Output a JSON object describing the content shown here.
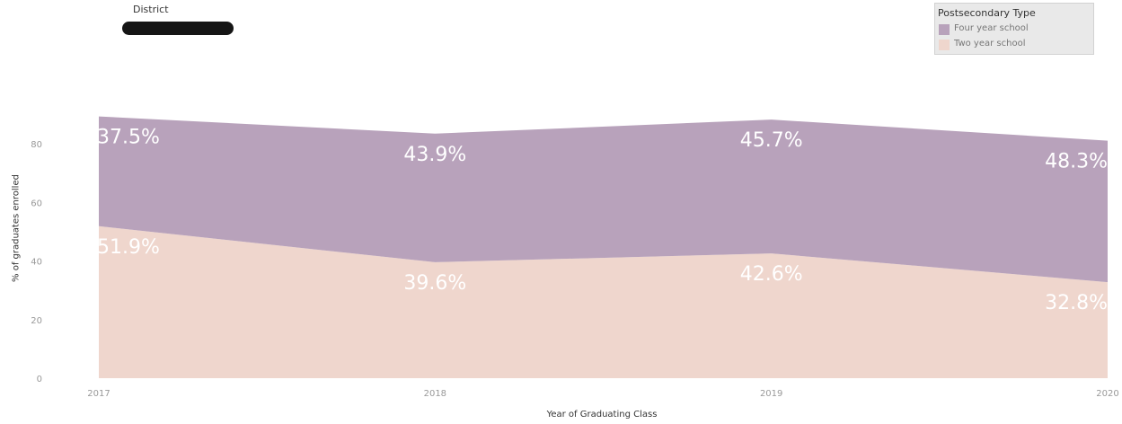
{
  "filter": {
    "label": "District"
  },
  "legend": {
    "title": "Postsecondary Type",
    "items": [
      {
        "label": "Four year school",
        "color": "#b8a2bb"
      },
      {
        "label": "Two year school",
        "color": "#efd6cd"
      }
    ]
  },
  "chart_data": {
    "type": "area",
    "stacked": true,
    "x": [
      2017,
      2018,
      2019,
      2020
    ],
    "xlabel": "Year of Graduating Class",
    "ylabel": "% of graduates enrolled",
    "ylim": [
      0,
      100
    ],
    "yticks": [
      0,
      20,
      40,
      60,
      80
    ],
    "grid": false,
    "legend_position": "top-right",
    "series": [
      {
        "name": "Two year school",
        "values": [
          51.9,
          39.6,
          42.6,
          32.8
        ],
        "labels": [
          "51.9%",
          "39.6%",
          "42.6%",
          "32.8%"
        ],
        "color": "#efd6cd"
      },
      {
        "name": "Four year school",
        "values": [
          37.5,
          43.9,
          45.7,
          48.3
        ],
        "labels": [
          "37.5%",
          "43.9%",
          "45.7%",
          "48.3%"
        ],
        "color": "#b8a2bb"
      }
    ]
  }
}
